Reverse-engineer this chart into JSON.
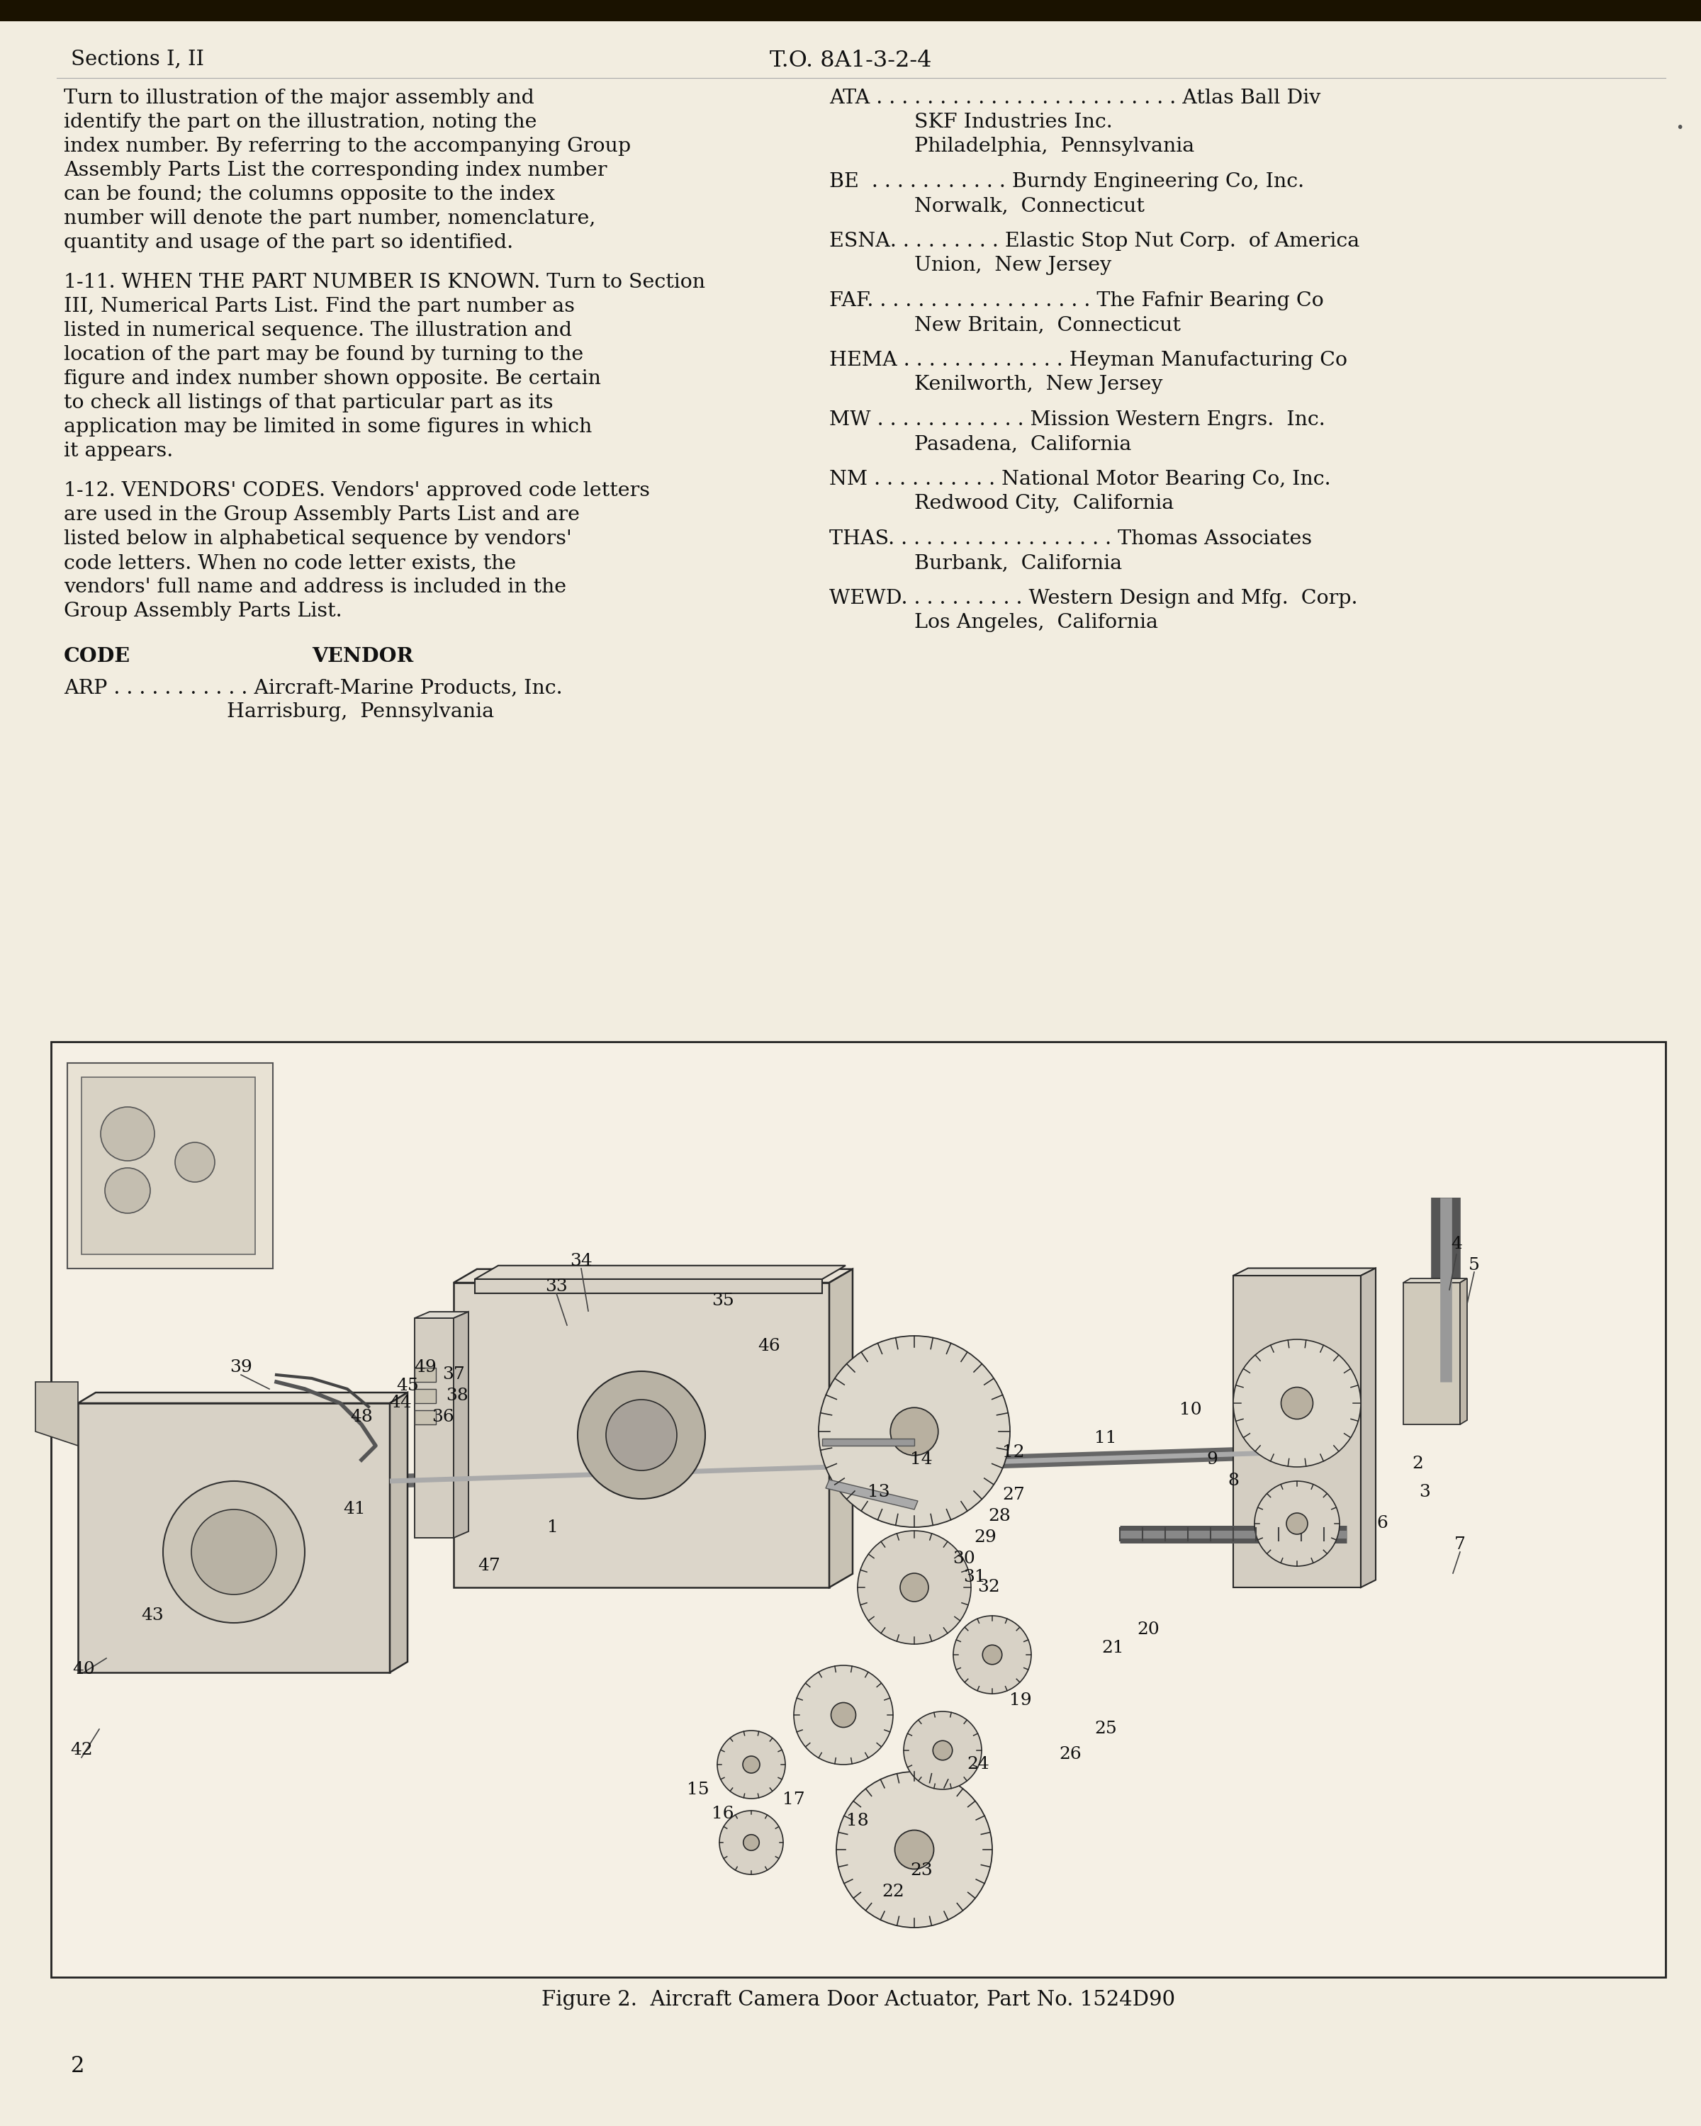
{
  "bg_color": "#f2ede0",
  "header_left": "Sections I, II",
  "header_center": "T.O. 8A1-3-2-4",
  "left_col_para1": "Turn to illustration of the major assembly and identify the part on the illustration,  noting the index number.  By referring to the accompanying Group Assembly Parts List the corresponding index number can be found; the columns opposite to the index number will denote the part number,  nomenclature,  quantity and usage of the part so identified.",
  "left_col_para2": "1-11.  WHEN THE PART NUMBER IS KNOWN.  Turn to Section III, Numerical Parts List.  Find the part number as listed in numerical sequence.  The illustration and location of the part may be found by turning to the figure and index number shown opposite.  Be certain to check all listings of that particular part as its application may be limited in some figures in which it appears.",
  "left_col_para3": "1-12.  VENDORS' CODES.  Vendors' approved code letters are used in the Group Assembly Parts List and are listed below in alphabetical sequence by vendors' code letters.  When no code letter exists, the vendors' full name and address is included in the Group Assembly Parts List.",
  "code_label": "CODE",
  "vendor_label": "VENDOR",
  "arp_line1": "ARP . . . . . . . . . . . Aircraft-Marine Products, Inc.",
  "arp_line2": "Harrisburg,  Pennsylvania",
  "right_entries": [
    {
      "code": "ATA . . . . . . . . . . . . . . . . . . . . . . . . Atlas Ball Div",
      "sub": [
        "SKF Industries Inc.",
        "Philadelphia,  Pennsylvania"
      ]
    },
    {
      "code": "BE  . . . . . . . . . . . Burndy Engineering Co, Inc.",
      "sub": [
        "Norwalk,  Connecticut"
      ]
    },
    {
      "code": "ESNA. . . . . . . . . Elastic Stop Nut Corp.  of America",
      "sub": [
        "Union,  New Jersey"
      ]
    },
    {
      "code": "FAF. . . . . . . . . . . . . . . . . . The Fafnir Bearing Co",
      "sub": [
        "New Britain,  Connecticut"
      ]
    },
    {
      "code": "HEMA . . . . . . . . . . . . . Heyman Manufacturing Co",
      "sub": [
        "Kenilworth,  New Jersey"
      ]
    },
    {
      "code": "MW . . . . . . . . . . . . Mission Western Engrs.  Inc.",
      "sub": [
        "Pasadena,  California"
      ]
    },
    {
      "code": "NM . . . . . . . . . . National Motor Bearing Co, Inc.",
      "sub": [
        "Redwood City,  California"
      ]
    },
    {
      "code": "THAS. . . . . . . . . . . . . . . . . . Thomas Associates",
      "sub": [
        "Burbank,  California"
      ]
    },
    {
      "code": "WEWD. . . . . . . . . . Western Design and Mfg.  Corp.",
      "sub": [
        "Los Angeles,  California"
      ]
    }
  ],
  "figure_caption": "Figure 2.  Aircraft Camera Door Actuator, Part No. 1524D90",
  "page_number": "2",
  "text_color": "#111111",
  "fig_bg": "#f5f0e5"
}
